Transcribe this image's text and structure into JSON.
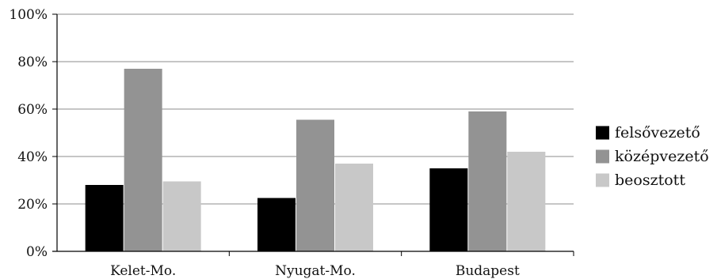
{
  "chart_data": {
    "type": "bar",
    "categories": [
      "Kelet-Mo.",
      "Nyugat-Mo.",
      "Budapest"
    ],
    "series": [
      {
        "name": "felsővezető",
        "values": [
          28,
          22.5,
          35
        ],
        "color": "#000000"
      },
      {
        "name": "középvezető",
        "values": [
          77,
          55.5,
          59
        ],
        "color": "#939393"
      },
      {
        "name": "beosztott",
        "values": [
          29.5,
          37,
          42
        ],
        "color": "#c8c8c8"
      }
    ],
    "ylim": [
      0,
      100
    ],
    "yticks": [
      0,
      20,
      40,
      60,
      80,
      100
    ],
    "ytick_labels": [
      "0%",
      "20%",
      "40%",
      "60%",
      "80%",
      "100%"
    ],
    "grid": true,
    "legend_position": "right",
    "title": "",
    "xlabel": "",
    "ylabel": ""
  }
}
